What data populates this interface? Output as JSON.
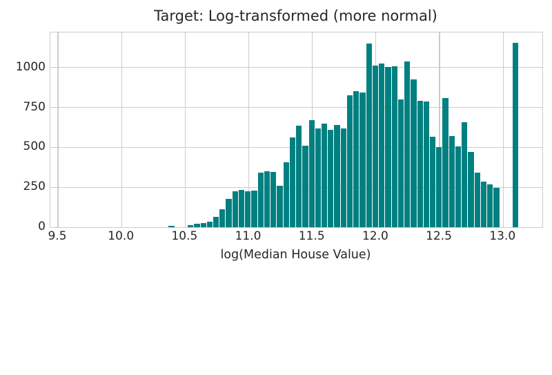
{
  "chart_data": {
    "type": "bar",
    "subtype": "histogram",
    "title": "Target: Log-transformed (more normal)",
    "xlabel": "log(Median House Value)",
    "ylabel": "",
    "bin_start": 10.367,
    "bin_width": 0.0501,
    "counts": [
      10,
      0,
      0,
      15,
      20,
      26,
      35,
      64,
      113,
      176,
      224,
      232,
      224,
      230,
      343,
      350,
      347,
      260,
      405,
      561,
      638,
      510,
      672,
      618,
      648,
      611,
      640,
      620,
      826,
      854,
      845,
      1152,
      1012,
      1024,
      1004,
      1006,
      800,
      1040,
      924,
      793,
      786,
      568,
      502,
      808,
      571,
      505,
      659,
      470,
      340,
      285,
      267,
      248,
      0,
      0,
      1155
    ],
    "x_ticks": [
      9.5,
      10.0,
      10.5,
      11.0,
      11.5,
      12.0,
      12.5,
      13.0
    ],
    "y_ticks": [
      0,
      250,
      500,
      750,
      1000
    ],
    "xlim": [
      9.44,
      13.308
    ],
    "ylim": [
      0,
      1220
    ],
    "grid": true,
    "legend": false,
    "bar_color": "#008080",
    "grid_color": "#cbcbcb",
    "text_color": "#262626"
  }
}
